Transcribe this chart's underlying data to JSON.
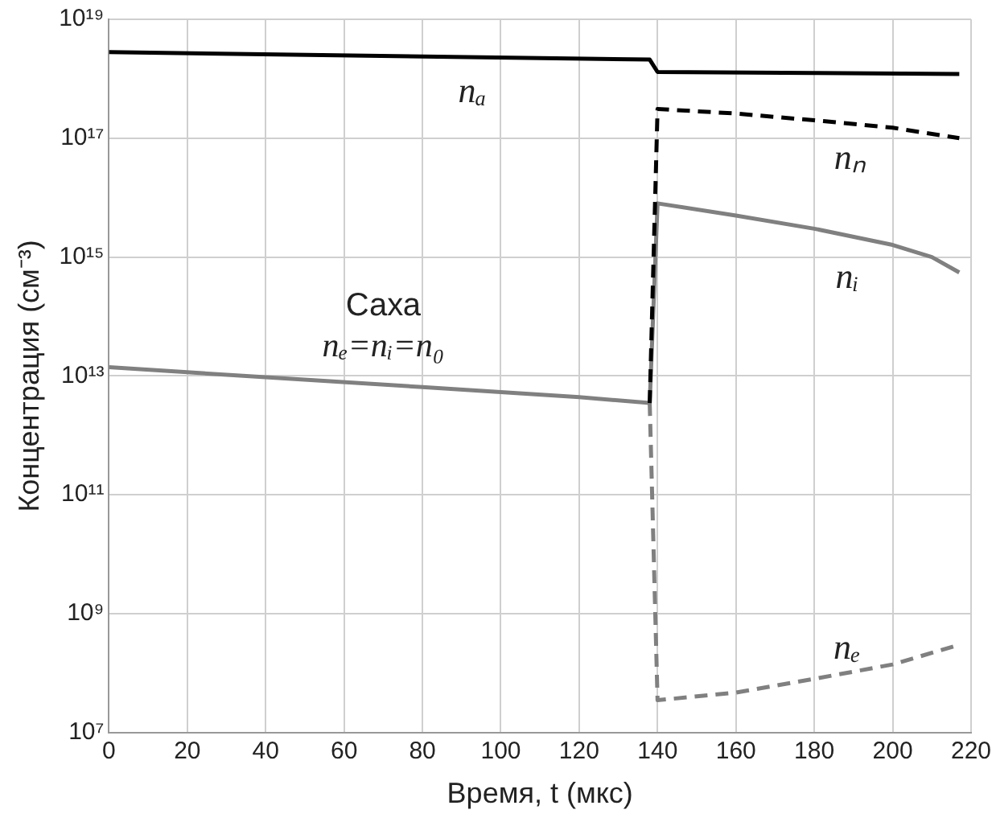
{
  "chart_data": {
    "type": "line",
    "xlabel": "Время, t (мкс)",
    "ylabel": "Концентрация (см⁻³)",
    "log": "y",
    "grid": true,
    "legend": false,
    "marker": "none",
    "xlim": [
      0,
      220
    ],
    "xticks": [
      0,
      20,
      40,
      60,
      80,
      100,
      120,
      140,
      160,
      180,
      200,
      220
    ],
    "ylim": [
      10000000.0,
      1e+19
    ],
    "yticks": [
      {
        "value": 10000000.0,
        "label": "10⁷"
      },
      {
        "value": 1000000000.0,
        "label": "10⁹"
      },
      {
        "value": 100000000000.0,
        "label": "10¹¹"
      },
      {
        "value": 10000000000000.0,
        "label": "10¹³"
      },
      {
        "value": 1000000000000000.0,
        "label": "10¹⁵"
      },
      {
        "value": 1e+17,
        "label": "10¹⁷"
      },
      {
        "value": 1e+19,
        "label": "10¹⁹"
      }
    ],
    "annotations": [
      "Саха",
      "nₑ=nᵢ=n₀"
    ],
    "series": [
      {
        "name": "nₐ",
        "color": "#000000",
        "line_style": "solid",
        "x": [
          0,
          138,
          140,
          180,
          217
        ],
        "values": [
          2.8e+18,
          2.1e+18,
          1.3e+18,
          1.25e+18,
          1.2e+18
        ]
      },
      {
        "name": "nₙ",
        "color": "#000000",
        "line_style": "dashed",
        "x": [
          138,
          140,
          160,
          180,
          200,
          217
        ],
        "values": [
          3500000000000.0,
          3.1e+17,
          2.6e+17,
          2e+17,
          1.5e+17,
          1e+17
        ]
      },
      {
        "color": "#808080",
        "line_style": "solid",
        "x": [
          0,
          40,
          80,
          120,
          138
        ],
        "values": [
          14000000000000.0,
          9500000000000.0,
          6500000000000.0,
          4400000000000.0,
          3500000000000.0
        ]
      },
      {
        "name": "nᵢ",
        "color": "#808080",
        "line_style": "solid",
        "x": [
          138,
          140,
          160,
          180,
          200,
          210,
          217
        ],
        "values": [
          3500000000000.0,
          8000000000000000.0,
          5000000000000000.0,
          3000000000000000.0,
          1600000000000000.0,
          1000000000000000.0,
          550000000000000.0
        ]
      },
      {
        "name": "nₑ",
        "color": "#808080",
        "line_style": "dashed",
        "x": [
          138,
          140,
          160,
          180,
          200,
          217
        ],
        "values": [
          3500000000000.0,
          35000000.0,
          47000000.0,
          80000000.0,
          140000000.0,
          300000000.0
        ]
      }
    ]
  }
}
